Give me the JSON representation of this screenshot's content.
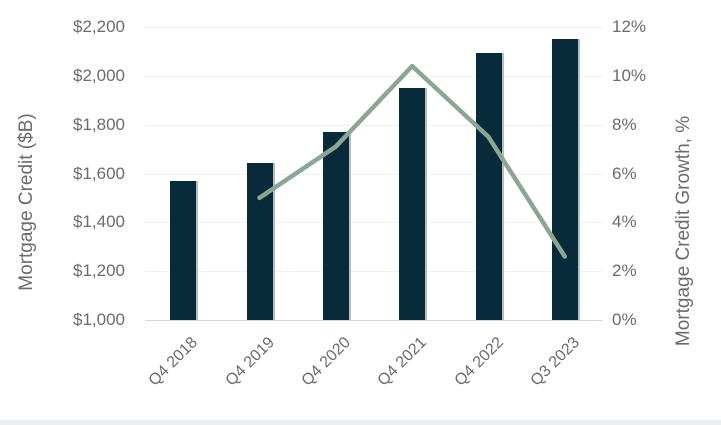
{
  "chart_data": {
    "type": "bar",
    "subtype": "combo-bar-line",
    "title": "",
    "categories": [
      "Q4 2018",
      "Q4 2019",
      "Q4 2020",
      "Q4 2021",
      "Q4 2022",
      "Q3 2023"
    ],
    "series": [
      {
        "name": "Mortgage Credit ($B)",
        "type": "bar",
        "axis": "left",
        "values": [
          1570,
          1645,
          1770,
          1950,
          2095,
          2150
        ]
      },
      {
        "name": "Mortgage Credit Growth, %",
        "type": "line",
        "axis": "right",
        "values": [
          null,
          5.0,
          7.1,
          10.4,
          7.5,
          2.6
        ]
      }
    ],
    "left_axis": {
      "label": "Mortgage Credit ($B)",
      "min": 1000,
      "max": 2200,
      "step": 200,
      "tick_labels": [
        "$1,000",
        "$1,200",
        "$1,400",
        "$1,600",
        "$1,800",
        "$2,000",
        "$2,200"
      ]
    },
    "right_axis": {
      "label": "Mortgage Credit Growth, %",
      "min": 0,
      "max": 12,
      "step": 2,
      "tick_labels": [
        "0%",
        "2%",
        "4%",
        "6%",
        "8%",
        "10%",
        "12%"
      ]
    },
    "grid": true,
    "legend": "none"
  },
  "colors": {
    "bar": "#092a3b",
    "line": "#8ba794",
    "gridline": "#f0f0f0",
    "baseline": "#d3d8da",
    "text": "#6b6b6b",
    "bottom_band": "#eaf0f0"
  }
}
